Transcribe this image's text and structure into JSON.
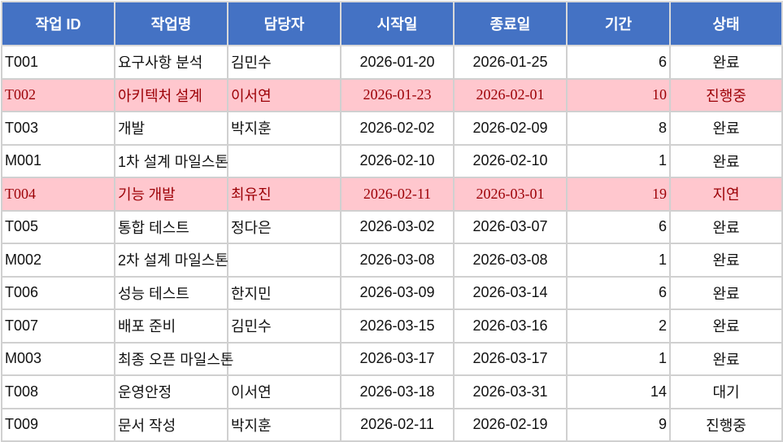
{
  "table": {
    "header": [
      "작업 ID",
      "작업명",
      "담당자",
      "시작일",
      "종료일",
      "기간",
      "상태"
    ],
    "rows": [
      [
        "T001",
        "요구사항 분석",
        "김민수",
        "2026-01-20",
        "2026-01-25",
        6,
        "완료"
      ],
      [
        "T002",
        "아키텍처 설계",
        "이서연",
        "2026-01-23",
        "2026-02-01",
        10,
        "진행중"
      ],
      [
        "T003",
        "개발",
        "박지훈",
        "2026-02-02",
        "2026-02-09",
        8,
        "완료"
      ],
      [
        "M001",
        "1차 설계 마일스톤",
        "",
        "2026-02-10",
        "2026-02-10",
        1,
        "완료"
      ],
      [
        "T004",
        "기능 개발",
        "최유진",
        "2026-02-11",
        "2026-03-01",
        19,
        "지연"
      ],
      [
        "T005",
        "통합 테스트",
        "정다은",
        "2026-03-02",
        "2026-03-07",
        6,
        "완료"
      ],
      [
        "M002",
        "2차 설계 마일스톤",
        "",
        "2026-03-08",
        "2026-03-08",
        1,
        "완료"
      ],
      [
        "T006",
        "성능 테스트",
        "한지민",
        "2026-03-09",
        "2026-03-14",
        6,
        "완료"
      ],
      [
        "T007",
        "배포 준비",
        "김민수",
        "2026-03-15",
        "2026-03-16",
        2,
        "완료"
      ],
      [
        "M003",
        "최종 오픈 마일스톤",
        "",
        "2026-03-17",
        "2026-03-17",
        1,
        "완료"
      ],
      [
        "T008",
        "운영안정",
        "이서연",
        "2026-03-18",
        "2026-03-31",
        14,
        "대기"
      ],
      [
        "T009",
        "문서 작성",
        "박지훈",
        "2026-02-11",
        "2026-02-19",
        9,
        "진행중"
      ]
    ],
    "highlighted_rows": [
      1,
      4
    ],
    "highlight_color": "#ffc7ce"
  }
}
